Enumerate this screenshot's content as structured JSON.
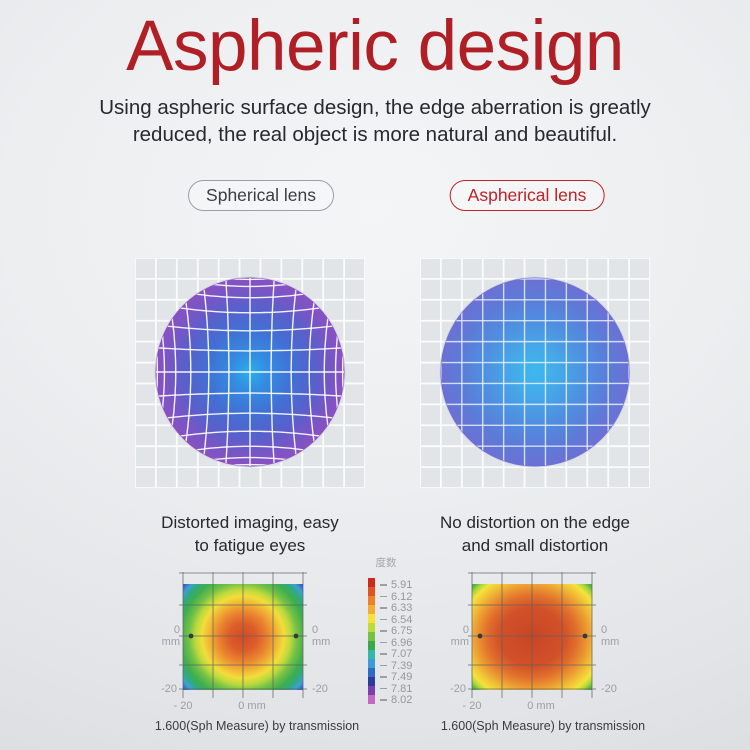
{
  "header": {
    "title": "Aspheric design",
    "title_color": "#b01f26",
    "subtitle_line1": "Using aspheric surface design, the edge aberration is greatly",
    "subtitle_line2": "reduced, the real object is more natural and beautiful."
  },
  "left": {
    "badge": "Spherical lens",
    "caption_line1": "Distorted imaging, easy",
    "caption_line2": "to fatigue eyes",
    "footer": "1.600(Sph Measure) by transmission",
    "lens": {
      "type": "distorted",
      "gradient": [
        [
          0,
          "#29b0ec"
        ],
        [
          0.18,
          "#338ee2"
        ],
        [
          0.45,
          "#4170d4"
        ],
        [
          0.7,
          "#5a5fcb"
        ],
        [
          0.88,
          "#7a55c5"
        ],
        [
          1,
          "#8a50c2"
        ]
      ],
      "line_color": "rgba(255,255,255,0.92)"
    },
    "heatmap": {
      "gradient": [
        [
          0,
          "#d14b28"
        ],
        [
          0.17,
          "#dd5d29"
        ],
        [
          0.3,
          "#ea8430"
        ],
        [
          0.42,
          "#f1b835"
        ],
        [
          0.5,
          "#f2dd3a"
        ],
        [
          0.58,
          "#bcd93d"
        ],
        [
          0.66,
          "#74c146"
        ],
        [
          0.76,
          "#3fae4e"
        ],
        [
          0.84,
          "#2fa982"
        ],
        [
          0.9,
          "#3f9fd5"
        ],
        [
          0.95,
          "#3568c8"
        ],
        [
          1,
          "#2b3c9e"
        ]
      ],
      "radius": 82,
      "stretch_x": 1.0
    }
  },
  "right": {
    "badge": "Aspherical lens",
    "caption_line1": "No distortion on the edge",
    "caption_line2": "and small distortion",
    "footer": "1.600(Sph Measure) by transmission",
    "lens": {
      "type": "regular",
      "gradient": [
        [
          0,
          "#3eb8ef"
        ],
        [
          0.25,
          "#45a9e8"
        ],
        [
          0.55,
          "#4f8ee0"
        ],
        [
          0.8,
          "#5d7ad7"
        ],
        [
          1,
          "#6c70d4"
        ]
      ],
      "line_color": "rgba(240,246,255,0.8)"
    },
    "heatmap": {
      "gradient": [
        [
          0,
          "#c84525"
        ],
        [
          0.4,
          "#d35128"
        ],
        [
          0.55,
          "#e06e2c"
        ],
        [
          0.68,
          "#eb9832"
        ],
        [
          0.79,
          "#f2c237"
        ],
        [
          0.88,
          "#f3e43b"
        ],
        [
          0.94,
          "#aad63e"
        ],
        [
          1,
          "#4db342"
        ]
      ],
      "radius": 74,
      "stretch_x": 1.1
    }
  },
  "axis": {
    "zero": "0",
    "unit": "mm",
    "edge": "-20",
    "bottom_left": "- 20",
    "bottom_center": "0 mm"
  },
  "legend": {
    "title": "度数",
    "ticks": [
      "5.91",
      "6.12",
      "6.33",
      "6.54",
      "6.75",
      "6.96",
      "7.07",
      "7.39",
      "7.49",
      "7.81",
      "8.02"
    ],
    "colors": [
      "#cc2a1f",
      "#e0521f",
      "#ee8128",
      "#f4ad33",
      "#f6e33a",
      "#bedb3c",
      "#74c144",
      "#3aa94d",
      "#36b8a8",
      "#3f9bd8",
      "#2f6ac6",
      "#2b3c9d",
      "#7a3fae",
      "#c568c2"
    ]
  }
}
